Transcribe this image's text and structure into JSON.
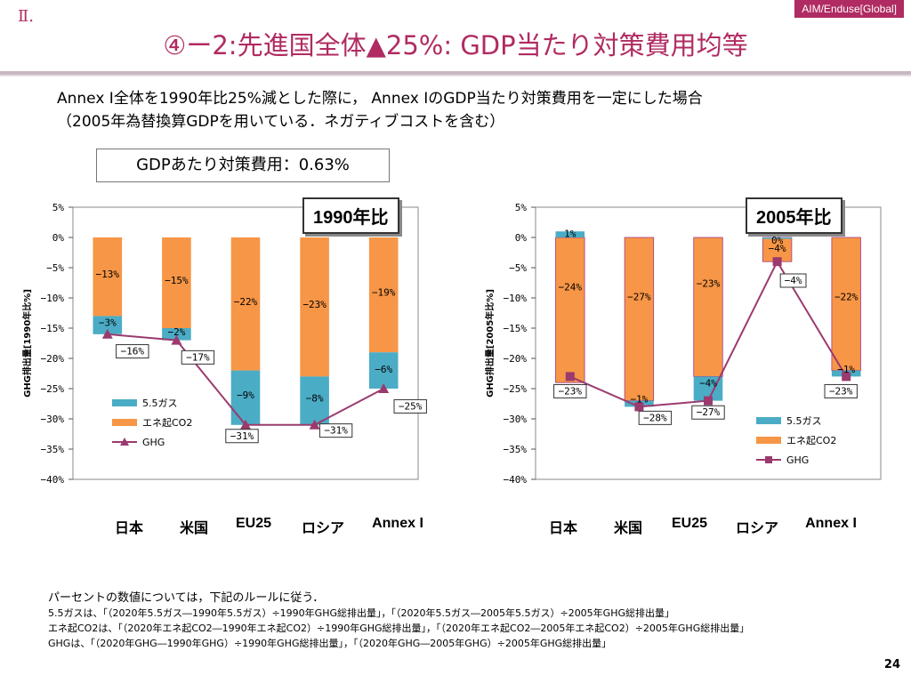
{
  "header": {
    "section": "Ⅱ.",
    "corner_tag": "AIM/Enduse[Global]",
    "title": "④ー2:先進国全体▲25%: GDP当たり対策費用均等"
  },
  "subtitle": {
    "line1": "Annex I全体を1990年比25%減とした際に， Annex IのGDP当たり対策費用を一定にした場合",
    "line2": "（2005年為替換算GDPを用いている．ネガティブコストを含む）"
  },
  "cost_box": "GDPあたり対策費用：0.63%",
  "colors": {
    "gas": "#4bacc6",
    "co2": "#f79646",
    "ghg": "#9b3a6e",
    "accent": "#b02b62"
  },
  "chart_data": [
    {
      "type": "bar",
      "badge": "1990年比",
      "ylabel": "GHG排出量[1990年比%]",
      "ylim": [
        -40,
        5
      ],
      "yticks": [
        "5%",
        "0%",
        "−5%",
        "−10%",
        "−15%",
        "−20%",
        "−25%",
        "−30%",
        "−35%",
        "−40%"
      ],
      "categories": [
        "日本",
        "米国",
        "EU25",
        "ロシア",
        "Annex I"
      ],
      "series": [
        {
          "name": "エネ起CO2",
          "values": [
            -13,
            -15,
            -22,
            -23,
            -19
          ],
          "labels": [
            "−13%",
            "−15%",
            "−22%",
            "−23%",
            "−19%"
          ]
        },
        {
          "name": "5.5ガス",
          "values": [
            -3,
            -2,
            -9,
            -8,
            -6
          ],
          "labels": [
            "−3%",
            "−2%",
            "−9%",
            "−8%",
            "−6%"
          ]
        },
        {
          "name": "GHG",
          "values": [
            -16,
            -17,
            -31,
            -31,
            -25
          ],
          "labels": [
            "−16%",
            "−17%",
            "−31%",
            "−31%",
            "−25%"
          ]
        }
      ],
      "legend": [
        "5.5ガス",
        "エネ起CO2",
        "GHG"
      ]
    },
    {
      "type": "bar",
      "badge": "2005年比",
      "ylabel": "GHG排出量[2005年比%]",
      "ylim": [
        -40,
        5
      ],
      "yticks": [
        "5%",
        "0%",
        "−5%",
        "−10%",
        "−15%",
        "−20%",
        "−25%",
        "−30%",
        "−35%",
        "−40%"
      ],
      "categories": [
        "日本",
        "米国",
        "EU25",
        "ロシア",
        "Annex I"
      ],
      "series": [
        {
          "name": "5.5ガス",
          "values": [
            1,
            -1,
            -4,
            0,
            -1
          ],
          "labels": [
            "1%",
            "−1%",
            "−4%",
            "0%",
            "−1%"
          ]
        },
        {
          "name": "エネ起CO2",
          "values": [
            -24,
            -27,
            -23,
            -4,
            -22
          ],
          "labels": [
            "−24%",
            "−27%",
            "−23%",
            "−4%",
            "−22%"
          ]
        },
        {
          "name": "GHG",
          "values": [
            -23,
            -28,
            -27,
            -4,
            -23
          ],
          "labels": [
            "−23%",
            "−28%",
            "−27%",
            "−4%",
            "−23%"
          ]
        }
      ],
      "legend": [
        "5.5ガス",
        "エネ起CO2",
        "GHG"
      ]
    }
  ],
  "notes": [
    "パーセントの数値については，下記のルールに従う．",
    "5.5ガスは、「（2020年5.5ガス―1990年5.5ガス）÷1990年GHG総排出量」，「（2020年5.5ガス―2005年5.5ガス）÷2005年GHG総排出量」",
    "エネ起CO2は、「（2020年エネ起CO2―1990年エネ起CO2）÷1990年GHG総排出量」，「（2020年エネ起CO2―2005年エネ起CO2）÷2005年GHG総排出量」",
    "GHGは、「（2020年GHG―1990年GHG）÷1990年GHG総排出量」，「（2020年GHG―2005年GHG）÷2005年GHG総排出量」"
  ],
  "page_number": "24"
}
